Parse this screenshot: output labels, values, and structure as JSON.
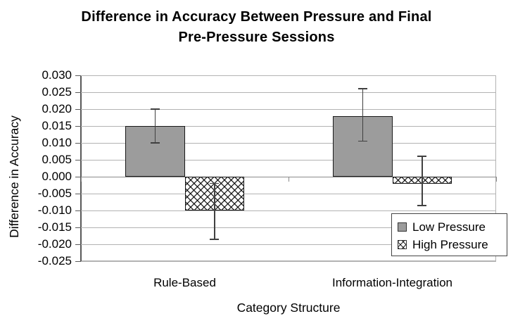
{
  "title": {
    "line1": "Difference in Accuracy Between Pressure and Final",
    "line2": "Pre-Pressure Sessions"
  },
  "chart_data": {
    "type": "bar",
    "title": "Difference in Accuracy Between Pressure and Final Pre-Pressure Sessions",
    "xlabel": "Category Structure",
    "ylabel": "Difference in Accuracy",
    "categories": [
      "Rule-Based",
      "Information-Integration"
    ],
    "series": [
      {
        "name": "Low Pressure",
        "style": "solid-gray",
        "values": [
          0.015,
          0.018
        ],
        "error_low": [
          0.01,
          0.0105
        ],
        "error_high": [
          0.02,
          0.026
        ]
      },
      {
        "name": "High Pressure",
        "style": "crosshatch",
        "values": [
          -0.01,
          -0.002
        ],
        "error_low": [
          -0.0185,
          -0.0085
        ],
        "error_high": [
          -0.002,
          0.006
        ]
      }
    ],
    "ylim": [
      -0.025,
      0.03
    ],
    "ytick_step": 0.005,
    "y_tick_labels": [
      "0.030",
      "0.025",
      "0.020",
      "0.015",
      "0.010",
      "0.005",
      "0.000",
      "-0.005",
      "-0.010",
      "-0.015",
      "-0.020",
      "-0.025"
    ],
    "grid": "horizontal",
    "legend_position": "inside-bottom-right"
  },
  "legend": {
    "items": [
      {
        "label": "Low Pressure",
        "swatch": "solid-gray"
      },
      {
        "label": "High Pressure",
        "swatch": "crosshatch"
      }
    ]
  },
  "colors": {
    "bar_fill_gray": "#9c9c9c",
    "bar_border": "#1a1a1a",
    "crosshatch_line": "#000000",
    "gridline": "#b3b3b3",
    "zero_line": "#8a8a8a",
    "axis_line": "#595959",
    "error_bar": "#404040",
    "text": "#000000",
    "background": "#ffffff"
  }
}
